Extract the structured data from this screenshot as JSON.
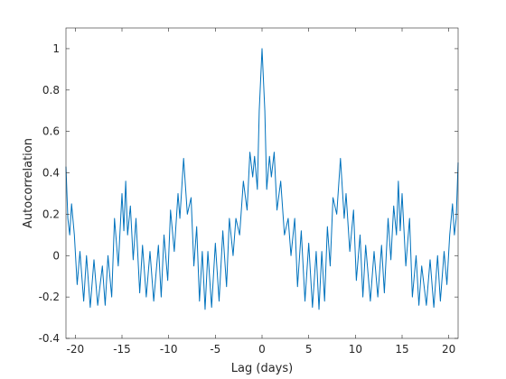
{
  "chart_data": {
    "type": "line",
    "title": "",
    "xlabel": "Lag (days)",
    "ylabel": "Autocorrelation",
    "xlim": [
      -21,
      21
    ],
    "ylim": [
      -0.4,
      1.1
    ],
    "xticks": [
      -20,
      -15,
      -10,
      -5,
      0,
      5,
      10,
      15,
      20
    ],
    "yticks": [
      -0.4,
      -0.2,
      0,
      0.2,
      0.4,
      0.6,
      0.8,
      1
    ],
    "xtick_labels": [
      "-20",
      "-15",
      "-10",
      "-5",
      "0",
      "5",
      "10",
      "15",
      "20"
    ],
    "ytick_labels": [
      "-0.4",
      "-0.2",
      "0",
      "0.2",
      "0.4",
      "0.6",
      "0.8",
      "1"
    ],
    "grid": false,
    "line_color": "#0072BD",
    "series": [
      {
        "x": [
          -21.0,
          -20.8,
          -20.6,
          -20.4,
          -20.1,
          -19.8,
          -19.5,
          -19.1,
          -18.8,
          -18.4,
          -18.0,
          -17.6,
          -17.1,
          -16.8,
          -16.5,
          -16.1,
          -15.8,
          -15.4,
          -15.0,
          -14.8,
          -14.6,
          -14.4,
          -14.1,
          -13.8,
          -13.5,
          -13.1,
          -12.8,
          -12.4,
          -12.0,
          -11.6,
          -11.1,
          -10.8,
          -10.5,
          -10.1,
          -9.8,
          -9.4,
          -9.0,
          -8.8,
          -8.4,
          -8.0,
          -7.6,
          -7.3,
          -7.0,
          -6.7,
          -6.4,
          -6.1,
          -5.8,
          -5.4,
          -5.0,
          -4.6,
          -4.2,
          -3.8,
          -3.5,
          -3.1,
          -2.8,
          -2.4,
          -2.0,
          -1.6,
          -1.3,
          -1.0,
          -0.8,
          -0.5,
          -0.3,
          0.0,
          0.3,
          0.5,
          0.8,
          1.0,
          1.3,
          1.6,
          2.0,
          2.4,
          2.8,
          3.1,
          3.5,
          3.8,
          4.2,
          4.6,
          5.0,
          5.4,
          5.8,
          6.1,
          6.4,
          6.7,
          7.0,
          7.3,
          7.6,
          8.0,
          8.4,
          8.8,
          9.0,
          9.4,
          9.8,
          10.1,
          10.5,
          10.8,
          11.1,
          11.6,
          12.0,
          12.4,
          12.8,
          13.1,
          13.5,
          13.8,
          14.1,
          14.4,
          14.6,
          14.8,
          15.0,
          15.4,
          15.8,
          16.1,
          16.5,
          16.8,
          17.1,
          17.6,
          18.0,
          18.4,
          18.8,
          19.1,
          19.5,
          19.8,
          20.1,
          20.4,
          20.6,
          20.8,
          21.0
        ],
        "y": [
          0.43,
          0.18,
          0.1,
          0.25,
          0.1,
          -0.14,
          0.02,
          -0.22,
          0.0,
          -0.25,
          -0.02,
          -0.24,
          -0.05,
          -0.24,
          0.0,
          -0.2,
          0.18,
          -0.05,
          0.3,
          0.12,
          0.36,
          0.1,
          0.24,
          -0.02,
          0.18,
          -0.18,
          0.05,
          -0.2,
          0.02,
          -0.22,
          0.05,
          -0.2,
          0.1,
          -0.12,
          0.22,
          0.02,
          0.3,
          0.18,
          0.47,
          0.2,
          0.28,
          -0.05,
          0.14,
          -0.22,
          0.02,
          -0.26,
          0.02,
          -0.25,
          0.06,
          -0.22,
          0.12,
          -0.15,
          0.18,
          0.0,
          0.18,
          0.1,
          0.36,
          0.22,
          0.5,
          0.38,
          0.48,
          0.32,
          0.7,
          1.0,
          0.7,
          0.32,
          0.48,
          0.38,
          0.5,
          0.22,
          0.36,
          0.1,
          0.18,
          0.0,
          0.18,
          -0.15,
          0.12,
          -0.22,
          0.06,
          -0.25,
          0.02,
          -0.26,
          0.02,
          -0.22,
          0.14,
          -0.05,
          0.28,
          0.2,
          0.47,
          0.18,
          0.3,
          0.02,
          0.22,
          -0.12,
          0.1,
          -0.2,
          0.05,
          -0.22,
          0.02,
          -0.2,
          0.05,
          -0.18,
          0.18,
          -0.02,
          0.24,
          0.1,
          0.36,
          0.12,
          0.3,
          -0.05,
          0.18,
          -0.2,
          0.0,
          -0.24,
          -0.05,
          -0.24,
          -0.02,
          -0.25,
          0.0,
          -0.22,
          0.02,
          -0.14,
          0.1,
          0.25,
          0.1,
          0.18,
          0.45
        ]
      }
    ]
  }
}
